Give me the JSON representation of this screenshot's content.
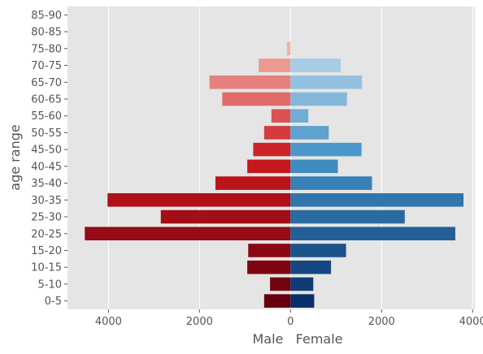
{
  "chart_data": {
    "type": "bar",
    "orientation": "horizontal",
    "layout": "population-pyramid",
    "ylabel": "age range",
    "xlabel": "Male   Female",
    "categories": [
      "0-5",
      "5-10",
      "10-15",
      "15-20",
      "20-25",
      "25-30",
      "30-35",
      "35-40",
      "40-45",
      "45-50",
      "50-55",
      "55-60",
      "60-65",
      "65-70",
      "70-75",
      "75-80",
      "80-85",
      "85-90"
    ],
    "series": [
      {
        "values": [
          -580,
          -450,
          -950,
          -930,
          -4520,
          -2850,
          -4020,
          -1650,
          -950,
          -820,
          -580,
          -420,
          -1500,
          -1780,
          -700,
          -80,
          0,
          0
        ]
      },
      {
        "values": [
          520,
          500,
          890,
          1220,
          3620,
          2510,
          3800,
          1790,
          1040,
          1560,
          840,
          390,
          1240,
          1570,
          1100,
          0,
          0,
          0
        ]
      }
    ],
    "xlim": [
      -4900,
      4050
    ],
    "xticks": [
      -4000,
      -2000,
      0,
      2000,
      4000
    ],
    "xtick_labels": [
      "4000",
      "2000",
      "0",
      "2000",
      "4000"
    ],
    "grid": true,
    "colors": {
      "background": "#e5e5e5",
      "grid": "#ffffff",
      "male_dark": "#67000d",
      "male_mid": "#cb181d",
      "male_light": "#fee0d2",
      "female_dark": "#08306b",
      "female_mid": "#4292c6",
      "female_light": "#deebf7"
    }
  }
}
